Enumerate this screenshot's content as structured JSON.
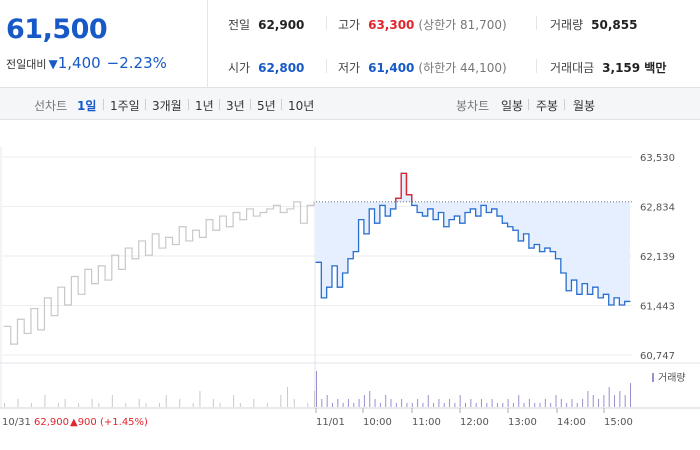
{
  "quote": {
    "price": "61,500",
    "change_label": "전일대비",
    "change_icon": "down-triangle-icon",
    "change_value": "1,400",
    "change_pct": "−2.23%",
    "color_down": "#1659c7",
    "color_up": "#e0262c"
  },
  "stats": {
    "prev_close": {
      "label": "전일",
      "value": "62,900"
    },
    "high": {
      "label": "고가",
      "value": "63,300",
      "sub": "(상한가 81,700)"
    },
    "volume": {
      "label": "거래량",
      "value": "50,855"
    },
    "open": {
      "label": "시가",
      "value": "62,800"
    },
    "low": {
      "label": "저가",
      "value": "61,400",
      "sub": "(하한가 44,100)"
    },
    "amount": {
      "label": "거래대금",
      "value": "3,159 백만"
    }
  },
  "toolbar": {
    "line_label": "선차트",
    "line_periods": [
      "1일",
      "1주일",
      "3개월",
      "1년",
      "3년",
      "5년",
      "10년"
    ],
    "active_period": "1일",
    "candle_label": "봉차트",
    "candle_periods": [
      "일봉",
      "주봉",
      "월봉"
    ]
  },
  "chart_data": {
    "type": "line",
    "y_ticks": [
      "63,530",
      "62,834",
      "62,139",
      "61,443",
      "60,747"
    ],
    "ylim": [
      60747,
      63530
    ],
    "prev_close_line": 62900,
    "volume_legend": "거래량",
    "x_labels": [
      "10/31",
      "11/01",
      "10:00",
      "11:00",
      "12:00",
      "13:00",
      "14:00",
      "15:00"
    ],
    "prev_day_summary": {
      "close": "62,900",
      "change": "▲900",
      "pct": "(+1.45%)"
    },
    "series": [
      {
        "day": "10/31",
        "color": "#c8c8c8",
        "values": [
          61150,
          60900,
          61250,
          61050,
          61400,
          61100,
          61550,
          61300,
          61700,
          61450,
          61850,
          61600,
          61950,
          61750,
          62000,
          61800,
          62150,
          61950,
          62250,
          62100,
          62350,
          62150,
          62450,
          62250,
          62400,
          62300,
          62550,
          62350,
          62500,
          62400,
          62650,
          62500,
          62700,
          62550,
          62750,
          62650,
          62800,
          62700,
          62750,
          62800,
          62850,
          62750,
          62800,
          62900,
          62600,
          62850,
          62900
        ]
      },
      {
        "day": "11/01",
        "color": "#2a6fd0",
        "up_color": "#e0262c",
        "values": [
          62050,
          61550,
          61700,
          62000,
          61700,
          61900,
          62100,
          62200,
          62650,
          62450,
          62800,
          62600,
          62850,
          62700,
          62800,
          62950,
          63300,
          63000,
          62850,
          62750,
          62700,
          62800,
          62650,
          62750,
          62550,
          62650,
          62700,
          62600,
          62750,
          62800,
          62700,
          62850,
          62750,
          62800,
          62700,
          62600,
          62550,
          62500,
          62350,
          62450,
          62250,
          62300,
          62200,
          62250,
          62200,
          62100,
          61900,
          61650,
          61800,
          61600,
          61750,
          61600,
          61700,
          61550,
          61600,
          61450,
          61550,
          61450,
          61500,
          61500
        ]
      }
    ],
    "volume": {
      "day1": [
        1,
        0,
        2,
        0,
        1,
        0,
        3,
        0,
        1,
        2,
        0,
        1,
        0,
        2,
        1,
        0,
        3,
        0,
        1,
        0,
        2,
        1,
        0,
        1,
        3,
        0,
        2,
        0,
        1,
        4,
        0,
        2,
        1,
        0,
        3,
        1,
        0,
        2,
        0,
        1,
        0,
        3,
        5,
        2,
        0,
        1,
        4
      ],
      "day2": [
        9,
        2,
        3,
        1,
        2,
        1,
        2,
        1,
        2,
        3,
        4,
        2,
        1,
        3,
        2,
        1,
        2,
        1,
        1,
        2,
        1,
        3,
        1,
        2,
        1,
        2,
        1,
        3,
        1,
        2,
        1,
        2,
        1,
        2,
        1,
        1,
        2,
        1,
        3,
        1,
        2,
        1,
        1,
        2,
        1,
        3,
        2,
        1,
        2,
        1,
        2,
        4,
        3,
        2,
        3,
        5,
        3,
        4,
        3,
        6
      ]
    }
  }
}
